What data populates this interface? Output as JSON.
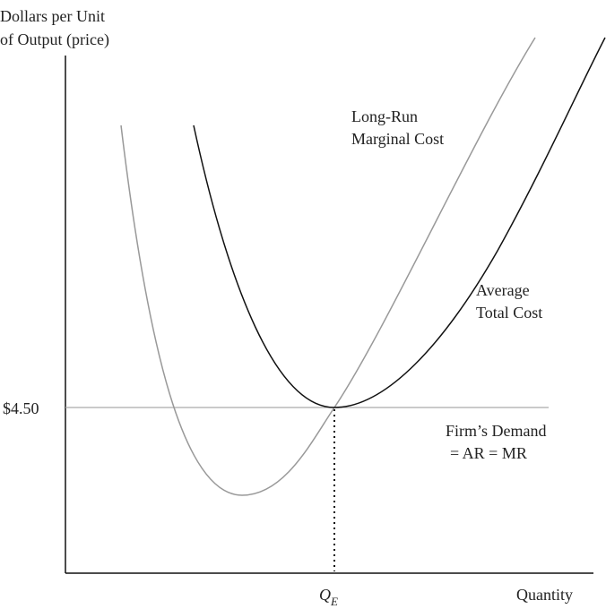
{
  "axes": {
    "y_label": [
      "Dollars per Unit",
      "of Output (price)"
    ],
    "x_label": "Quantity"
  },
  "price_label": "$4.50",
  "quantity_label": {
    "main": "Q",
    "subscript": "E"
  },
  "curves": [
    {
      "label": [
        "Long-Run",
        "Marginal Cost"
      ]
    },
    {
      "label": [
        "Average",
        "Total Cost"
      ]
    },
    {
      "label": [
        "Firm’s Demand",
        "= AR = MR"
      ]
    }
  ]
}
